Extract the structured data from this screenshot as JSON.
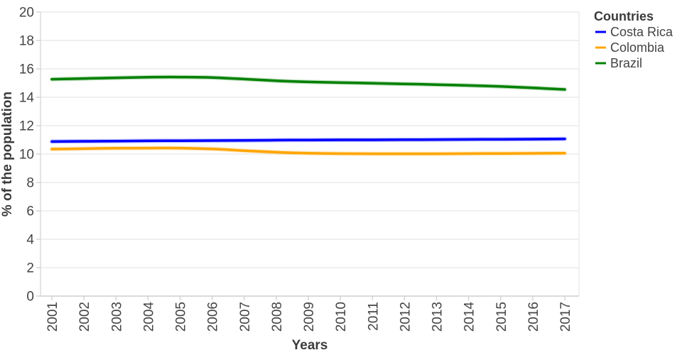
{
  "chart_data": {
    "type": "line",
    "title": "",
    "xlabel": "Years",
    "ylabel": "% of the population",
    "legend_title": "Countries",
    "legend_position": "top-right-outside",
    "grid": "horizontal",
    "background": "#ffffff",
    "axis_text_color": "#444444",
    "x": [
      2001,
      2002,
      2003,
      2004,
      2005,
      2006,
      2007,
      2008,
      2009,
      2010,
      2011,
      2012,
      2013,
      2014,
      2015,
      2016,
      2017
    ],
    "ylim": [
      0,
      20
    ],
    "yticks": [
      0,
      2,
      4,
      6,
      8,
      10,
      12,
      14,
      16,
      18,
      20
    ],
    "series": [
      {
        "name": "Costa Rica",
        "color": "#0000ff",
        "values": [
          10.88,
          10.9,
          10.91,
          10.93,
          10.94,
          10.95,
          10.96,
          10.98,
          10.99,
          11.0,
          11.0,
          11.01,
          11.02,
          11.03,
          11.04,
          11.05,
          11.07
        ]
      },
      {
        "name": "Colombia",
        "color": "#ffa500",
        "values": [
          10.35,
          10.38,
          10.41,
          10.42,
          10.42,
          10.36,
          10.24,
          10.13,
          10.06,
          10.03,
          10.02,
          10.02,
          10.02,
          10.03,
          10.04,
          10.05,
          10.06
        ]
      },
      {
        "name": "Brazil",
        "color": "#008000",
        "values": [
          15.27,
          15.32,
          15.37,
          15.41,
          15.42,
          15.39,
          15.28,
          15.16,
          15.08,
          15.03,
          14.99,
          14.94,
          14.89,
          14.83,
          14.76,
          14.66,
          14.55
        ]
      }
    ]
  }
}
